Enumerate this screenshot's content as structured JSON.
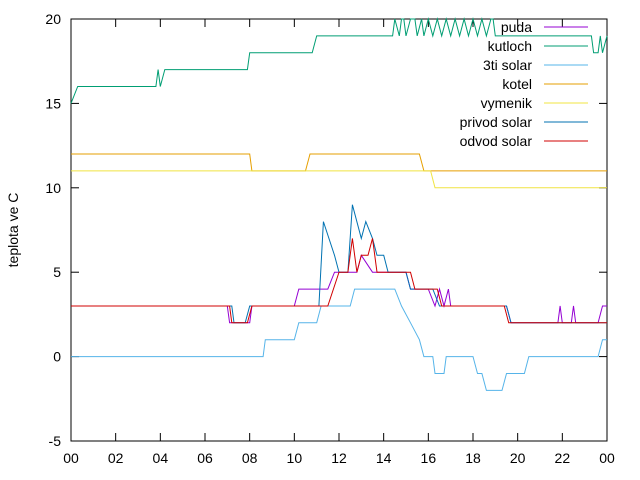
{
  "chart_data": {
    "type": "line",
    "ylabel": "teplota ve C",
    "xlabel": "",
    "title": "",
    "ylim": [
      -5,
      20
    ],
    "xlim": [
      0,
      24
    ],
    "xticks": [
      "00",
      "02",
      "04",
      "06",
      "08",
      "10",
      "12",
      "14",
      "16",
      "18",
      "20",
      "22",
      "00"
    ],
    "yticks": [
      "-5",
      "0",
      "5",
      "10",
      "15",
      "20"
    ],
    "grid": false,
    "legend_position": "top-right",
    "series": [
      {
        "name": "puda",
        "color": "#9400d3",
        "points": [
          [
            0,
            3
          ],
          [
            7.0,
            3
          ],
          [
            7.1,
            2
          ],
          [
            8.0,
            2
          ],
          [
            8.1,
            3
          ],
          [
            10.0,
            3
          ],
          [
            10.2,
            4
          ],
          [
            11.5,
            4
          ],
          [
            11.8,
            5
          ],
          [
            12.8,
            5
          ],
          [
            13.0,
            6
          ],
          [
            13.5,
            5
          ],
          [
            14.0,
            5
          ],
          [
            15.0,
            5
          ],
          [
            15.2,
            4
          ],
          [
            16.0,
            4
          ],
          [
            16.3,
            3
          ],
          [
            16.5,
            4
          ],
          [
            16.7,
            3
          ],
          [
            16.9,
            4
          ],
          [
            17.0,
            3
          ],
          [
            19.5,
            3
          ],
          [
            19.7,
            2
          ],
          [
            21.8,
            2
          ],
          [
            21.9,
            3
          ],
          [
            22.0,
            2
          ],
          [
            22.4,
            2
          ],
          [
            22.5,
            3
          ],
          [
            22.6,
            2
          ],
          [
            23.6,
            2
          ],
          [
            23.8,
            3
          ],
          [
            24,
            3
          ]
        ]
      },
      {
        "name": "kutloch",
        "color": "#009e73",
        "points": [
          [
            0,
            15
          ],
          [
            0.3,
            16
          ],
          [
            3.8,
            16
          ],
          [
            3.9,
            17
          ],
          [
            4.0,
            16
          ],
          [
            4.2,
            17
          ],
          [
            7.9,
            17
          ],
          [
            8.0,
            18
          ],
          [
            10.8,
            18
          ],
          [
            11.0,
            19
          ],
          [
            14.4,
            19
          ],
          [
            14.5,
            20
          ],
          [
            14.7,
            19
          ],
          [
            14.8,
            20
          ],
          [
            14.9,
            20
          ],
          [
            15.0,
            19
          ],
          [
            15.2,
            20
          ],
          [
            15.4,
            20
          ],
          [
            15.5,
            19
          ],
          [
            15.7,
            20
          ],
          [
            15.8,
            19
          ],
          [
            16.0,
            20
          ],
          [
            16.2,
            19
          ],
          [
            16.4,
            20
          ],
          [
            16.6,
            19
          ],
          [
            16.8,
            20
          ],
          [
            17.0,
            19
          ],
          [
            17.2,
            20
          ],
          [
            17.4,
            19
          ],
          [
            17.6,
            20
          ],
          [
            17.8,
            19
          ],
          [
            18.0,
            20
          ],
          [
            18.2,
            19
          ],
          [
            18.4,
            20
          ],
          [
            18.6,
            19
          ],
          [
            18.8,
            20
          ],
          [
            18.9,
            20
          ],
          [
            19.0,
            19
          ],
          [
            23.3,
            19
          ],
          [
            23.4,
            18
          ],
          [
            23.6,
            18
          ],
          [
            23.7,
            19
          ],
          [
            23.8,
            18
          ],
          [
            24.0,
            19
          ]
        ]
      },
      {
        "name": "3ti solar",
        "color": "#56b4e9",
        "points": [
          [
            0,
            0
          ],
          [
            8.6,
            0
          ],
          [
            8.7,
            1
          ],
          [
            10.0,
            1
          ],
          [
            10.2,
            2
          ],
          [
            11.0,
            2
          ],
          [
            11.2,
            3
          ],
          [
            12.5,
            3
          ],
          [
            12.7,
            4
          ],
          [
            14.5,
            4
          ],
          [
            14.8,
            3
          ],
          [
            15.2,
            2
          ],
          [
            15.6,
            1
          ],
          [
            15.8,
            0
          ],
          [
            16.2,
            0
          ],
          [
            16.3,
            -1
          ],
          [
            16.7,
            -1
          ],
          [
            16.8,
            0
          ],
          [
            18.0,
            0
          ],
          [
            18.2,
            -1
          ],
          [
            18.4,
            -1
          ],
          [
            18.6,
            -2
          ],
          [
            19.3,
            -2
          ],
          [
            19.5,
            -1
          ],
          [
            20.3,
            -1
          ],
          [
            20.5,
            0
          ],
          [
            23.6,
            0
          ],
          [
            23.8,
            1
          ],
          [
            24,
            1
          ]
        ]
      },
      {
        "name": "kotel",
        "color": "#e69f00",
        "points": [
          [
            0,
            12
          ],
          [
            8.0,
            12
          ],
          [
            8.1,
            11
          ],
          [
            10.5,
            11
          ],
          [
            10.7,
            12
          ],
          [
            15.6,
            12
          ],
          [
            15.8,
            11
          ],
          [
            24,
            11
          ]
        ]
      },
      {
        "name": "vymenik",
        "color": "#f0e442",
        "points": [
          [
            0,
            11
          ],
          [
            16.1,
            11
          ],
          [
            16.3,
            10
          ],
          [
            24,
            10
          ]
        ]
      },
      {
        "name": "privod solar",
        "color": "#0072b2",
        "points": [
          [
            0,
            3
          ],
          [
            7.2,
            3
          ],
          [
            7.3,
            2
          ],
          [
            7.8,
            2
          ],
          [
            8.0,
            3
          ],
          [
            11.1,
            3
          ],
          [
            11.3,
            8
          ],
          [
            11.8,
            6
          ],
          [
            12.0,
            5
          ],
          [
            12.4,
            5
          ],
          [
            12.6,
            9
          ],
          [
            13.0,
            7
          ],
          [
            13.2,
            8
          ],
          [
            13.5,
            7
          ],
          [
            13.7,
            6
          ],
          [
            14.0,
            6
          ],
          [
            14.2,
            5
          ],
          [
            15.0,
            5
          ],
          [
            15.2,
            4
          ],
          [
            16.2,
            4
          ],
          [
            16.5,
            3
          ],
          [
            19.5,
            3
          ],
          [
            19.7,
            2
          ],
          [
            24,
            2
          ]
        ]
      },
      {
        "name": "odvod solar",
        "color": "#d00000",
        "points": [
          [
            0,
            3
          ],
          [
            7.1,
            3
          ],
          [
            7.2,
            2
          ],
          [
            7.9,
            2
          ],
          [
            8.1,
            3
          ],
          [
            11.5,
            3
          ],
          [
            12.0,
            5
          ],
          [
            12.4,
            5
          ],
          [
            12.6,
            7
          ],
          [
            12.8,
            5
          ],
          [
            13.0,
            6
          ],
          [
            13.3,
            6
          ],
          [
            13.5,
            7
          ],
          [
            13.7,
            5
          ],
          [
            15.2,
            5
          ],
          [
            15.4,
            4
          ],
          [
            16.4,
            4
          ],
          [
            16.6,
            3
          ],
          [
            19.4,
            3
          ],
          [
            19.6,
            2
          ],
          [
            24,
            2
          ]
        ]
      }
    ]
  }
}
